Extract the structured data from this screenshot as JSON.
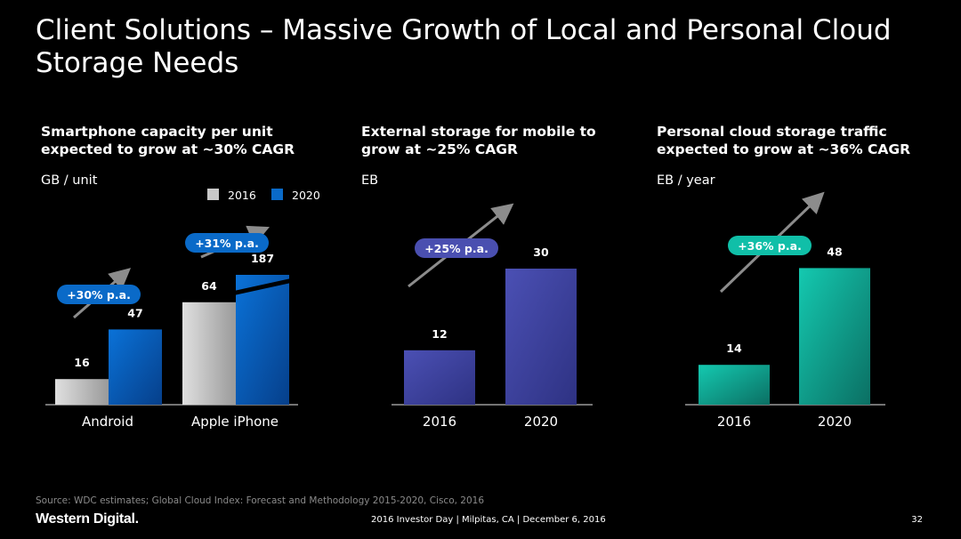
{
  "slide": {
    "title": "Client Solutions – Massive Growth of Local and Personal Cloud Storage Needs",
    "source": "Source:  WDC estimates; Global Cloud Index: Forecast and Methodology 2015-2020, Cisco, 2016",
    "logo_text": "Western Digital.",
    "footer": "2016 Investor Day | Milpitas, CA | December 6, 2016",
    "page_number": "32"
  },
  "panels": [
    {
      "title_line1": "Smartphone capacity per unit",
      "title_line2": "expected to grow at ~30% CAGR",
      "unit": "GB / unit"
    },
    {
      "title_line1": "External storage for mobile to",
      "title_line2": "grow at ~25% CAGR",
      "unit": "EB"
    },
    {
      "title_line1": "Personal cloud storage traffic",
      "title_line2": "expected to grow at ~36% CAGR",
      "unit": "EB / year"
    }
  ],
  "chart_data": [
    {
      "type": "bar",
      "categories": [
        "Android",
        "Apple iPhone"
      ],
      "series": [
        {
          "name": "2016",
          "values": [
            16,
            64
          ],
          "color": "#c8c8c8"
        },
        {
          "name": "2020",
          "values": [
            47,
            187
          ],
          "color": "#0a6ac8"
        }
      ],
      "legend": [
        "2016",
        "2020"
      ],
      "legend_position": "top-right",
      "axis_break": "Apple iPhone 2020 bar",
      "growth_badges": [
        "+30% p.a.",
        "+31% p.a."
      ],
      "badge_color": "#0a6ac8"
    },
    {
      "type": "bar",
      "categories": [
        "2016",
        "2020"
      ],
      "values": [
        12,
        30
      ],
      "color": "#4a4fb0",
      "growth_badge": "+25% p.a.",
      "badge_color": "#4a4fb0"
    },
    {
      "type": "bar",
      "categories": [
        "2016",
        "2020"
      ],
      "values": [
        14,
        48
      ],
      "color": "#10bfa8",
      "growth_badge": "+36% p.a.",
      "badge_color": "#10bfa8"
    }
  ]
}
